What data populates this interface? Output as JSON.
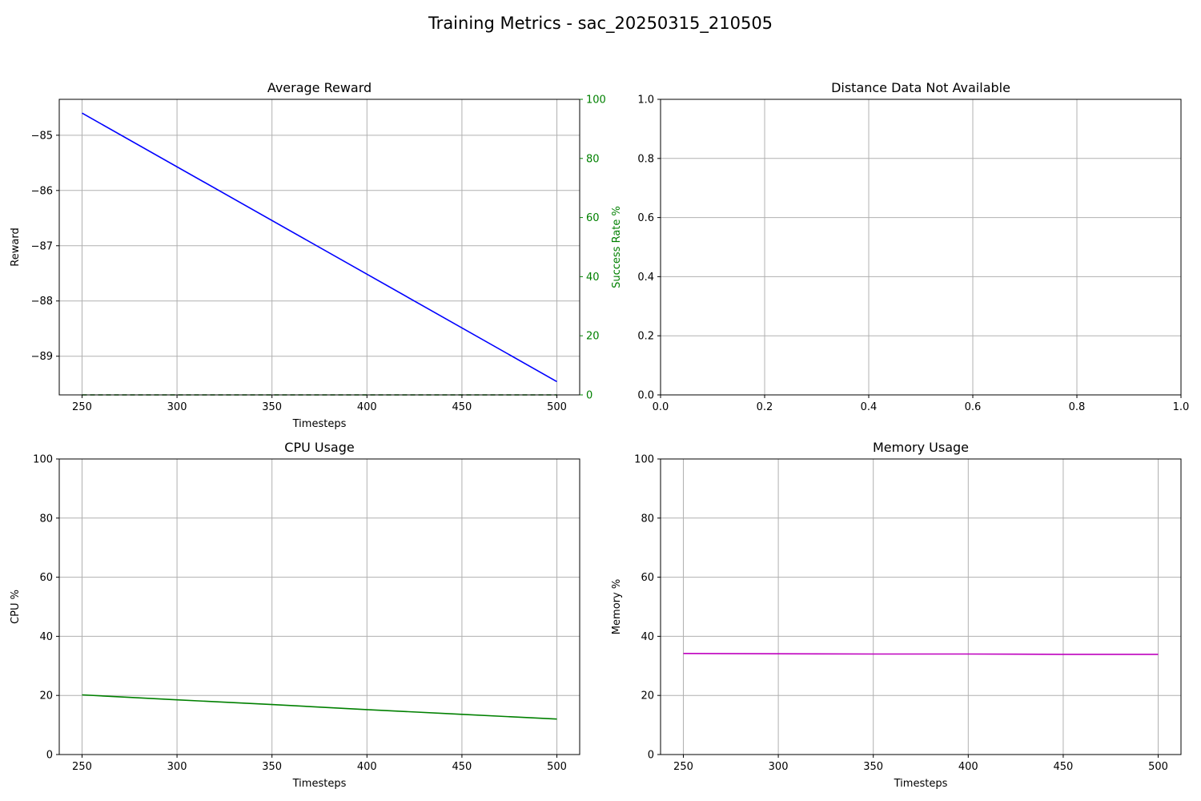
{
  "figure": {
    "suptitle": "Training Metrics - sac_20250315_210505"
  },
  "colors": {
    "reward": "#0000ff",
    "success": "#008000",
    "cpu": "#008000",
    "memory": "#bf00bf",
    "grid": "#b0b0b0",
    "axes": "#000000"
  },
  "chart_data": [
    {
      "id": "reward",
      "type": "line",
      "title": "Average Reward",
      "xlabel": "Timesteps",
      "ylabel": "Reward",
      "xlim": [
        238,
        512
      ],
      "ylim": [
        -89.7,
        -84.35
      ],
      "xticks": [
        250,
        300,
        350,
        400,
        450,
        500
      ],
      "yticks": [
        -89,
        -88,
        -87,
        -86,
        -85
      ],
      "grid": true,
      "series": [
        {
          "x": [
            250,
            500
          ],
          "y": [
            -84.6,
            -89.46
          ],
          "color": "#0000ff",
          "dash": ""
        }
      ],
      "secondary_axis": {
        "ylabel": "Success Rate %",
        "ylim": [
          0,
          100
        ],
        "yticks": [
          0,
          20,
          40,
          60,
          80,
          100
        ],
        "color": "#008000",
        "series": [
          {
            "x": [
              250,
              500
            ],
            "y": [
              0,
              0
            ],
            "color": "#008000",
            "dash": "6,4"
          }
        ]
      }
    },
    {
      "id": "distance",
      "type": "line",
      "title": "Distance Data Not Available",
      "xlabel": "",
      "ylabel": "",
      "xlim": [
        0,
        1
      ],
      "ylim": [
        0,
        1
      ],
      "xticks": [
        0.0,
        0.2,
        0.4,
        0.6,
        0.8,
        1.0
      ],
      "yticks": [
        0.0,
        0.2,
        0.4,
        0.6,
        0.8,
        1.0
      ],
      "tick_decimals": 1,
      "grid": true,
      "series": []
    },
    {
      "id": "cpu",
      "type": "line",
      "title": "CPU Usage",
      "xlabel": "Timesteps",
      "ylabel": "CPU %",
      "xlim": [
        238,
        512
      ],
      "ylim": [
        0,
        100
      ],
      "xticks": [
        250,
        300,
        350,
        400,
        450,
        500
      ],
      "yticks": [
        0,
        20,
        40,
        60,
        80,
        100
      ],
      "grid": true,
      "series": [
        {
          "x": [
            250,
            300,
            350,
            400,
            450,
            500
          ],
          "y": [
            20.2,
            18.5,
            16.9,
            15.2,
            13.6,
            12.0
          ],
          "color": "#008000",
          "dash": ""
        }
      ]
    },
    {
      "id": "memory",
      "type": "line",
      "title": "Memory Usage",
      "xlabel": "Timesteps",
      "ylabel": "Memory %",
      "xlim": [
        238,
        512
      ],
      "ylim": [
        0,
        100
      ],
      "xticks": [
        250,
        300,
        350,
        400,
        450,
        500
      ],
      "yticks": [
        0,
        20,
        40,
        60,
        80,
        100
      ],
      "grid": true,
      "series": [
        {
          "x": [
            250,
            300,
            350,
            400,
            450,
            500
          ],
          "y": [
            34.2,
            34.1,
            34.0,
            34.0,
            33.9,
            33.9
          ],
          "color": "#bf00bf",
          "dash": ""
        }
      ]
    }
  ]
}
